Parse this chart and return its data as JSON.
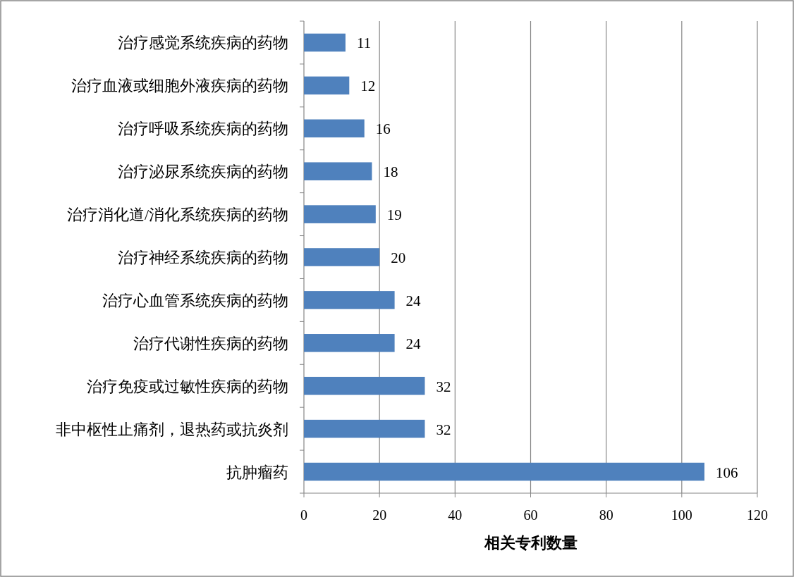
{
  "chart_data": {
    "type": "bar",
    "orientation": "horizontal",
    "xlabel": "相关专利数量",
    "categories": [
      "治疗感觉系统疾病的药物",
      "治疗血液或细胞外液疾病的药物",
      "治疗呼吸系统疾病的药物",
      "治疗泌尿系统疾病的药物",
      "治疗消化道/消化系统疾病的药物",
      "治疗神经系统疾病的药物",
      "治疗心血管系统疾病的药物",
      "治疗代谢性疾病的药物",
      "治疗免疫或过敏性疾病的药物",
      "非中枢性止痛剂，退热药或抗炎剂",
      "抗肿瘤药"
    ],
    "values": [
      11,
      12,
      16,
      18,
      19,
      20,
      24,
      24,
      32,
      32,
      106
    ],
    "color": "#4f81bd",
    "xlim": [
      0,
      120
    ],
    "xticks": [
      0,
      20,
      40,
      60,
      80,
      100,
      120
    ],
    "grid": "x",
    "data_labels": true
  }
}
